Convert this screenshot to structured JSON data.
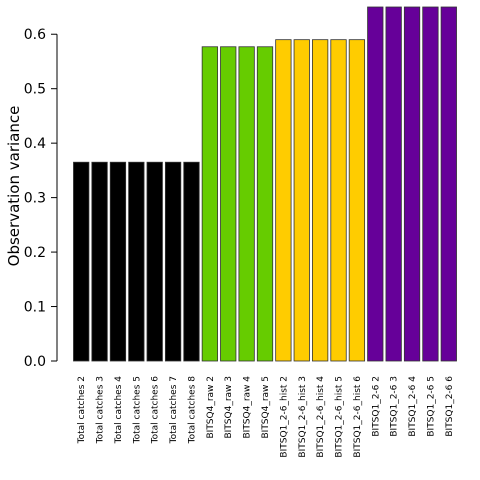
{
  "chart_data": {
    "type": "bar",
    "title": "",
    "xlabel": "",
    "ylabel": "Observation variance",
    "ylim": [
      0,
      0.65
    ],
    "yticks": [
      "0.0",
      "0.1",
      "0.2",
      "0.3",
      "0.4",
      "0.5",
      "0.6"
    ],
    "categories": [
      "Total catches 2",
      "Total catches 3",
      "Total catches 4",
      "Total catches 5",
      "Total catches 6",
      "Total catches 7",
      "Total catches 8",
      "BITSQ4_raw 2",
      "BITSQ4_raw 3",
      "BITSQ4_raw 4",
      "BITSQ4_raw 5",
      "BITSQ1_2-6_hist 2",
      "BITSQ1_2-6_hist 3",
      "BITSQ1_2-6_hist 4",
      "BITSQ1_2-6_hist 5",
      "BITSQ1_2-6_hist 6",
      "BITSQ1_2-6 2",
      "BITSQ1_2-6 3",
      "BITSQ1_2-6 4",
      "BITSQ1_2-6 5",
      "BITSQ1_2-6 6"
    ],
    "values": [
      0.365,
      0.365,
      0.365,
      0.365,
      0.365,
      0.365,
      0.365,
      0.577,
      0.577,
      0.577,
      0.577,
      0.59,
      0.59,
      0.59,
      0.59,
      0.59,
      0.65,
      0.65,
      0.65,
      0.65,
      0.65
    ],
    "colors": [
      "#000000",
      "#000000",
      "#000000",
      "#000000",
      "#000000",
      "#000000",
      "#000000",
      "#66cc00",
      "#66cc00",
      "#66cc00",
      "#66cc00",
      "#ffcc00",
      "#ffcc00",
      "#ffcc00",
      "#ffcc00",
      "#ffcc00",
      "#660099",
      "#660099",
      "#660099",
      "#660099",
      "#660099"
    ],
    "grid": false,
    "legend": "none"
  }
}
